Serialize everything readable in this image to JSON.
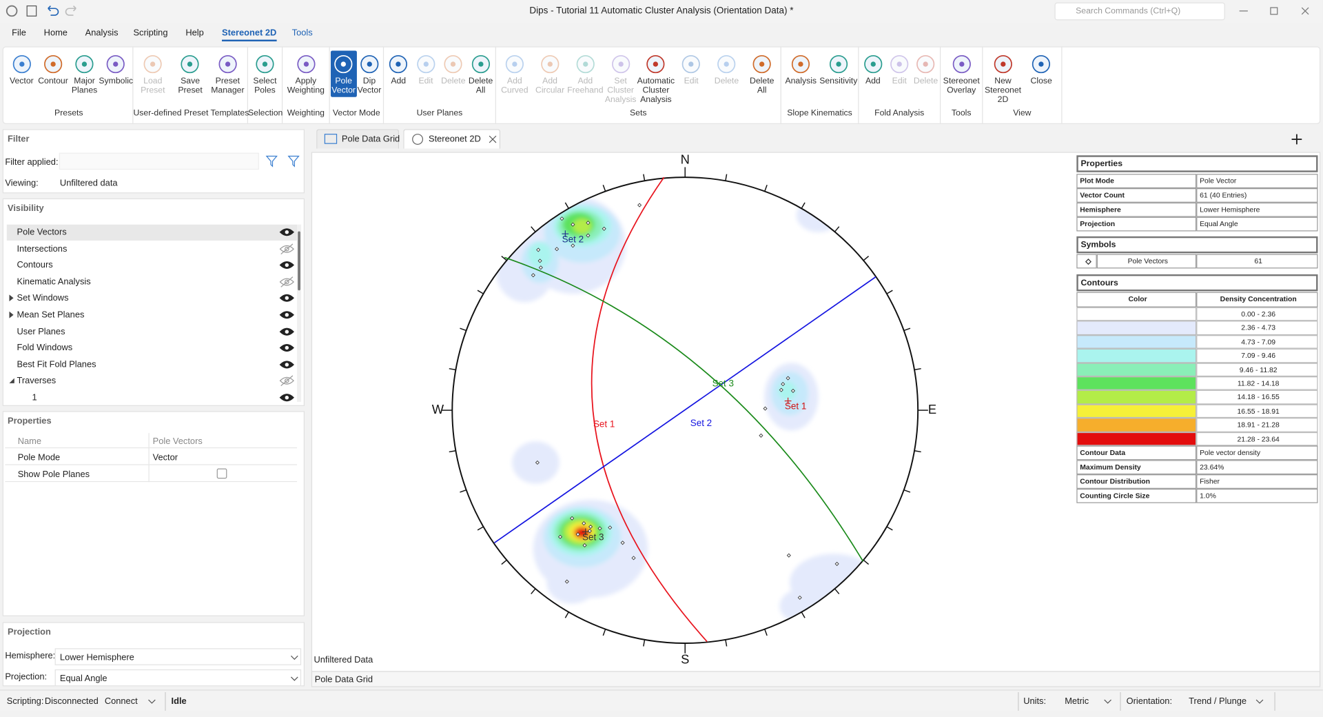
{
  "window": {
    "title": "Dips - Tutorial 11 Automatic Cluster Analysis (Orientation Data) *",
    "search": "Search Commands (Ctrl+Q)"
  },
  "menu": {
    "items": [
      "File",
      "Home",
      "Analysis",
      "Scripting",
      "Help",
      "Stereonet 2D",
      "Tools"
    ],
    "active": 5
  },
  "ribbon": [
    {
      "label": "Presets",
      "buttons": [
        {
          "label": "Vector"
        },
        {
          "label": "Contour"
        },
        {
          "label": "Major Planes"
        },
        {
          "label": "Symbolic"
        }
      ]
    },
    {
      "label": "User-defined Preset Templates",
      "buttons": [
        {
          "label": "Load Preset",
          "disabled": true
        },
        {
          "label": "Save Preset"
        },
        {
          "label": "Preset Manager"
        }
      ]
    },
    {
      "label": "Selection",
      "buttons": [
        {
          "label": "Select Poles"
        }
      ]
    },
    {
      "label": "Weighting",
      "buttons": [
        {
          "label": "Apply Weighting"
        }
      ]
    },
    {
      "label": "Vector Mode",
      "buttons": [
        {
          "label": "Pole Vector",
          "active": true
        },
        {
          "label": "Dip Vector"
        }
      ]
    },
    {
      "label": "User Planes",
      "buttons": [
        {
          "label": "Add"
        },
        {
          "label": "Edit",
          "disabled": true
        },
        {
          "label": "Delete",
          "disabled": true
        },
        {
          "label": "Delete All"
        }
      ]
    },
    {
      "label": "Sets",
      "buttons": [
        {
          "label": "Add Curved",
          "disabled": true
        },
        {
          "label": "Add Circular",
          "disabled": true
        },
        {
          "label": "Add Freehand",
          "disabled": true
        },
        {
          "label": "Set Cluster Analysis",
          "disabled": true
        },
        {
          "label": "Automatic Cluster Analysis"
        },
        {
          "label": "Edit",
          "disabled": true
        },
        {
          "label": "Delete",
          "disabled": true
        },
        {
          "label": "Delete All"
        }
      ]
    },
    {
      "label": "Slope Kinematics",
      "buttons": [
        {
          "label": "Analysis"
        },
        {
          "label": "Sensitivity"
        }
      ]
    },
    {
      "label": "Fold Analysis",
      "buttons": [
        {
          "label": "Add"
        },
        {
          "label": "Edit",
          "disabled": true
        },
        {
          "label": "Delete",
          "disabled": true
        }
      ]
    },
    {
      "label": "Tools",
      "buttons": [
        {
          "label": "Stereonet Overlay"
        }
      ]
    },
    {
      "label": "View",
      "buttons": [
        {
          "label": "New Stereonet 2D"
        },
        {
          "label": "Close"
        }
      ]
    }
  ],
  "filter": {
    "title": "Filter",
    "applied_label": "Filter applied:",
    "viewing_label": "Viewing:",
    "viewing": "Unfiltered data"
  },
  "visibility": {
    "title": "Visibility",
    "items": [
      {
        "label": "Pole Vectors",
        "visible": true
      },
      {
        "label": "Intersections",
        "visible": false
      },
      {
        "label": "Contours",
        "visible": true
      },
      {
        "label": "Kinematic Analysis",
        "visible": false
      },
      {
        "label": "Set Windows",
        "visible": true,
        "expander": "collapsed"
      },
      {
        "label": "Mean Set Planes",
        "visible": true,
        "expander": "collapsed"
      },
      {
        "label": "User Planes",
        "visible": true
      },
      {
        "label": "Fold Windows",
        "visible": true
      },
      {
        "label": "Best Fit Fold Planes",
        "visible": true
      },
      {
        "label": "Traverses",
        "visible": false,
        "expander": "expanded",
        "children": [
          {
            "label": "1",
            "visible": true
          }
        ]
      }
    ]
  },
  "properties": {
    "title": "Properties",
    "header": [
      "Name",
      "Pole Vectors"
    ],
    "rows": [
      {
        "name": "Pole Mode",
        "value": "Vector"
      },
      {
        "name": "Show Pole Planes",
        "checked": false
      }
    ]
  },
  "projection": {
    "title": "Projection",
    "hemisphere_label": "Hemisphere:",
    "hemisphere": "Lower Hemisphere",
    "projection_label": "Projection:",
    "projection": "Equal Angle"
  },
  "tabs": {
    "items": [
      "Pole Data Grid",
      "Stereonet 2D"
    ],
    "active": 1
  },
  "stereonet": {
    "compass": {
      "north": "N",
      "east": "E",
      "south": "S",
      "west": "W"
    },
    "great_circles": [
      {
        "label": "Set 1",
        "color": "#e8141e"
      },
      {
        "label": "Set 2",
        "color": "#1414e0"
      },
      {
        "label": "Set 3",
        "color": "#1a8a1a"
      }
    ],
    "pole_sets": [
      {
        "label": "Set 2",
        "color": "#1c2a8c"
      },
      {
        "label": "Set 1",
        "color": "#d01010"
      },
      {
        "label": "Set 3",
        "color": "#333333"
      }
    ],
    "footer": "Unfiltered Data"
  },
  "bottom_tab": "Pole Data Grid",
  "info": {
    "properties": {
      "title": "Properties",
      "rows": [
        [
          "Plot Mode",
          "Pole Vector"
        ],
        [
          "Vector Count",
          "61 (40 Entries)"
        ],
        [
          "Hemisphere",
          "Lower Hemisphere"
        ],
        [
          "Projection",
          "Equal Angle"
        ]
      ]
    },
    "symbols": {
      "title": "Symbols",
      "rows": [
        [
          "Pole Vectors",
          "61"
        ]
      ]
    },
    "contours": {
      "title": "Contours",
      "header": [
        "Color",
        "Density Concentration"
      ],
      "levels": [
        {
          "range": "0.00 - 2.36",
          "color": "#ffffff"
        },
        {
          "range": "2.36 - 4.73",
          "color": "#e4eafc"
        },
        {
          "range": "4.73 - 7.09",
          "color": "#c6e9fb"
        },
        {
          "range": "7.09 - 9.46",
          "color": "#aaf4ee"
        },
        {
          "range": "9.46 - 11.82",
          "color": "#8aefb8"
        },
        {
          "range": "11.82 - 14.18",
          "color": "#5de25d"
        },
        {
          "range": "14.18 - 16.55",
          "color": "#b3ec48"
        },
        {
          "range": "16.55 - 18.91",
          "color": "#f6f038"
        },
        {
          "range": "18.91 - 21.28",
          "color": "#f6ae2c"
        },
        {
          "range": "21.28 - 23.64",
          "color": "#e30d0d"
        }
      ],
      "rows": [
        [
          "Contour Data",
          "Pole vector density"
        ],
        [
          "Maximum Density",
          "23.64%"
        ],
        [
          "Contour Distribution",
          "Fisher"
        ],
        [
          "Counting Circle Size",
          "1.0%"
        ]
      ]
    }
  },
  "status": {
    "scripting_label": "Scripting:",
    "scripting": "Disconnected",
    "connect": "Connect",
    "state": "Idle",
    "units_label": "Units:",
    "units": "Metric",
    "orientation_label": "Orientation:",
    "orientation": "Trend / Plunge"
  }
}
